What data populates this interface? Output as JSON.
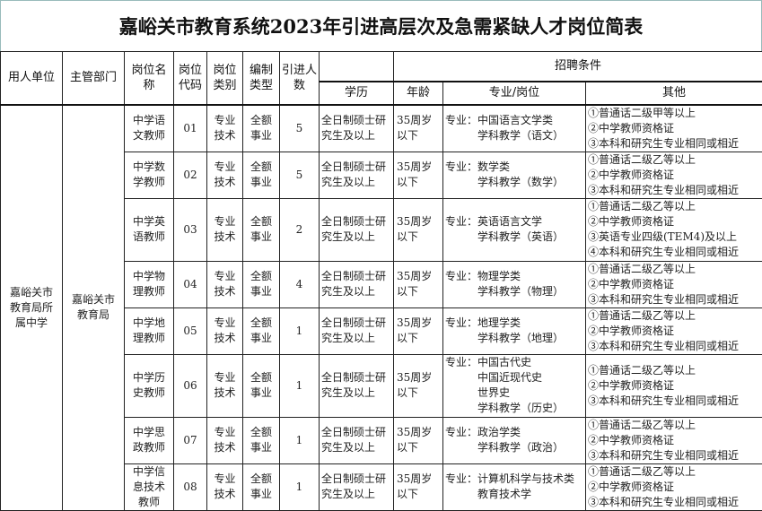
{
  "title": "嘉峪关市教育系统2023年引进高层次及急需紧缺人才岗位简表",
  "headers": {
    "employer": "用人单位",
    "department": "主管部门",
    "position_name": "岗位名称",
    "position_code": "岗位代码",
    "position_type": "岗位类别",
    "staffing_type": "编制类型",
    "count": "引进人数",
    "conditions": "招聘条件",
    "education": "学历",
    "age": "年龄",
    "major": "专业/岗位",
    "other": "其他"
  },
  "employer": "嘉峪关市教育局所属中学",
  "department": "嘉峪关市教育局",
  "major_label": "专业：",
  "rows": [
    {
      "name": "中学语文教师",
      "code": "01",
      "type": "专业技术",
      "staffing": "全额事业",
      "count": "5",
      "education": "全日制硕士研究生及以上",
      "age": "35周岁以下",
      "majors": [
        "中国语言文学类",
        "学科教学（语文）"
      ],
      "other": [
        "①普通话二级甲等以上",
        "②中学教师资格证",
        "③本科和研究生专业相同或相近"
      ]
    },
    {
      "name": "中学数学教师",
      "code": "02",
      "type": "专业技术",
      "staffing": "全额事业",
      "count": "5",
      "education": "全日制硕士研究生及以上",
      "age": "35周岁以下",
      "majors": [
        "数学类",
        "学科教学（数学）"
      ],
      "other": [
        "①普通话二级乙等以上",
        "②中学教师资格证",
        "③本科和研究生专业相同或相近"
      ]
    },
    {
      "name": "中学英语教师",
      "code": "03",
      "type": "专业技术",
      "staffing": "全额事业",
      "count": "2",
      "education": "全日制硕士研究生及以上",
      "age": "35周岁以下",
      "majors": [
        "英语语言文学",
        "学科教学（英语）"
      ],
      "other": [
        "①普通话二级乙等以上",
        "②中学教师资格证",
        "③英语专业四级(TEM4)及以上",
        "④本科和研究生专业相同或相近"
      ]
    },
    {
      "name": "中学物理教师",
      "code": "04",
      "type": "专业技术",
      "staffing": "全额事业",
      "count": "4",
      "education": "全日制硕士研究生及以上",
      "age": "35周岁以下",
      "majors": [
        "物理学类",
        "学科教学（物理）"
      ],
      "other": [
        "①普通话二级乙等以上",
        "②中学教师资格证",
        "③本科和研究生专业相同或相近"
      ]
    },
    {
      "name": "中学地理教师",
      "code": "05",
      "type": "专业技术",
      "staffing": "全额事业",
      "count": "1",
      "education": "全日制硕士研究生及以上",
      "age": "35周岁以下",
      "majors": [
        "地理学类",
        "学科教学（地理）"
      ],
      "other": [
        "①普通话二级乙等以上",
        "②中学教师资格证",
        "③本科和研究生专业相同或相近"
      ]
    },
    {
      "name": "中学历史教师",
      "code": "06",
      "type": "专业技术",
      "staffing": "全额事业",
      "count": "1",
      "education": "全日制硕士研究生及以上",
      "age": "35周岁以下",
      "majors": [
        "中国古代史",
        "中国近现代史",
        "世界史",
        "学科教学（历史）"
      ],
      "other": [
        "①普通话二级乙等以上",
        "②中学教师资格证",
        "③本科和研究生专业相同或相近"
      ]
    },
    {
      "name": "中学思政教师",
      "code": "07",
      "type": "专业技术",
      "staffing": "全额事业",
      "count": "1",
      "education": "全日制硕士研究生及以上",
      "age": "35周岁以下",
      "majors": [
        "政治学类",
        "学科教学（政治）"
      ],
      "other": [
        "①普通话二级乙等以上",
        "②中学教师资格证",
        "③本科和研究生专业相同或相近"
      ]
    },
    {
      "name": "中学信息技术教师",
      "code": "08",
      "type": "专业技术",
      "staffing": "全额事业",
      "count": "1",
      "education": "全日制硕士研究生及以上",
      "age": "35周岁以下",
      "majors": [
        "计算机科学与技术类",
        "教育技术学"
      ],
      "other": [
        "①普通话二级乙等以上",
        "②中学教师资格证",
        "③本科和研究生专业相同或相近"
      ]
    }
  ]
}
